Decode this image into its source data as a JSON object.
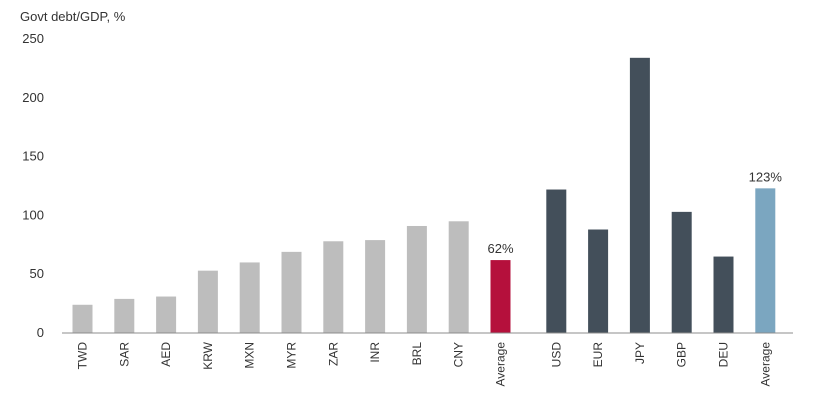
{
  "chart_data": {
    "type": "bar",
    "ylabel": "Govt debt/GDP, %",
    "ylim": [
      0,
      250
    ],
    "yticks": [
      0,
      50,
      100,
      150,
      200,
      250
    ],
    "grid": false,
    "categories": [
      "TWD",
      "SAR",
      "AED",
      "KRW",
      "MXN",
      "MYR",
      "ZAR",
      "INR",
      "BRL",
      "CNY",
      "Average",
      "USD",
      "EUR",
      "JPY",
      "GBP",
      "DEU",
      "Average"
    ],
    "values": [
      24,
      29,
      31,
      53,
      60,
      69,
      78,
      79,
      91,
      95,
      62,
      122,
      88,
      234,
      103,
      65,
      123
    ],
    "groups": [
      {
        "members": 11
      },
      {
        "members": 6
      }
    ],
    "colors": {
      "emerging": "#bdbdbd",
      "emerging_average": "#b5103c",
      "developed": "#434f5a",
      "developed_average": "#7ba6c0",
      "axis": "#8c8c8c"
    },
    "bar_colors": [
      "emerging",
      "emerging",
      "emerging",
      "emerging",
      "emerging",
      "emerging",
      "emerging",
      "emerging",
      "emerging",
      "emerging",
      "emerging_average",
      "developed",
      "developed",
      "developed",
      "developed",
      "developed",
      "developed_average"
    ],
    "annotations": [
      {
        "index": 10,
        "text": "62%"
      },
      {
        "index": 16,
        "text": "123%"
      }
    ]
  }
}
